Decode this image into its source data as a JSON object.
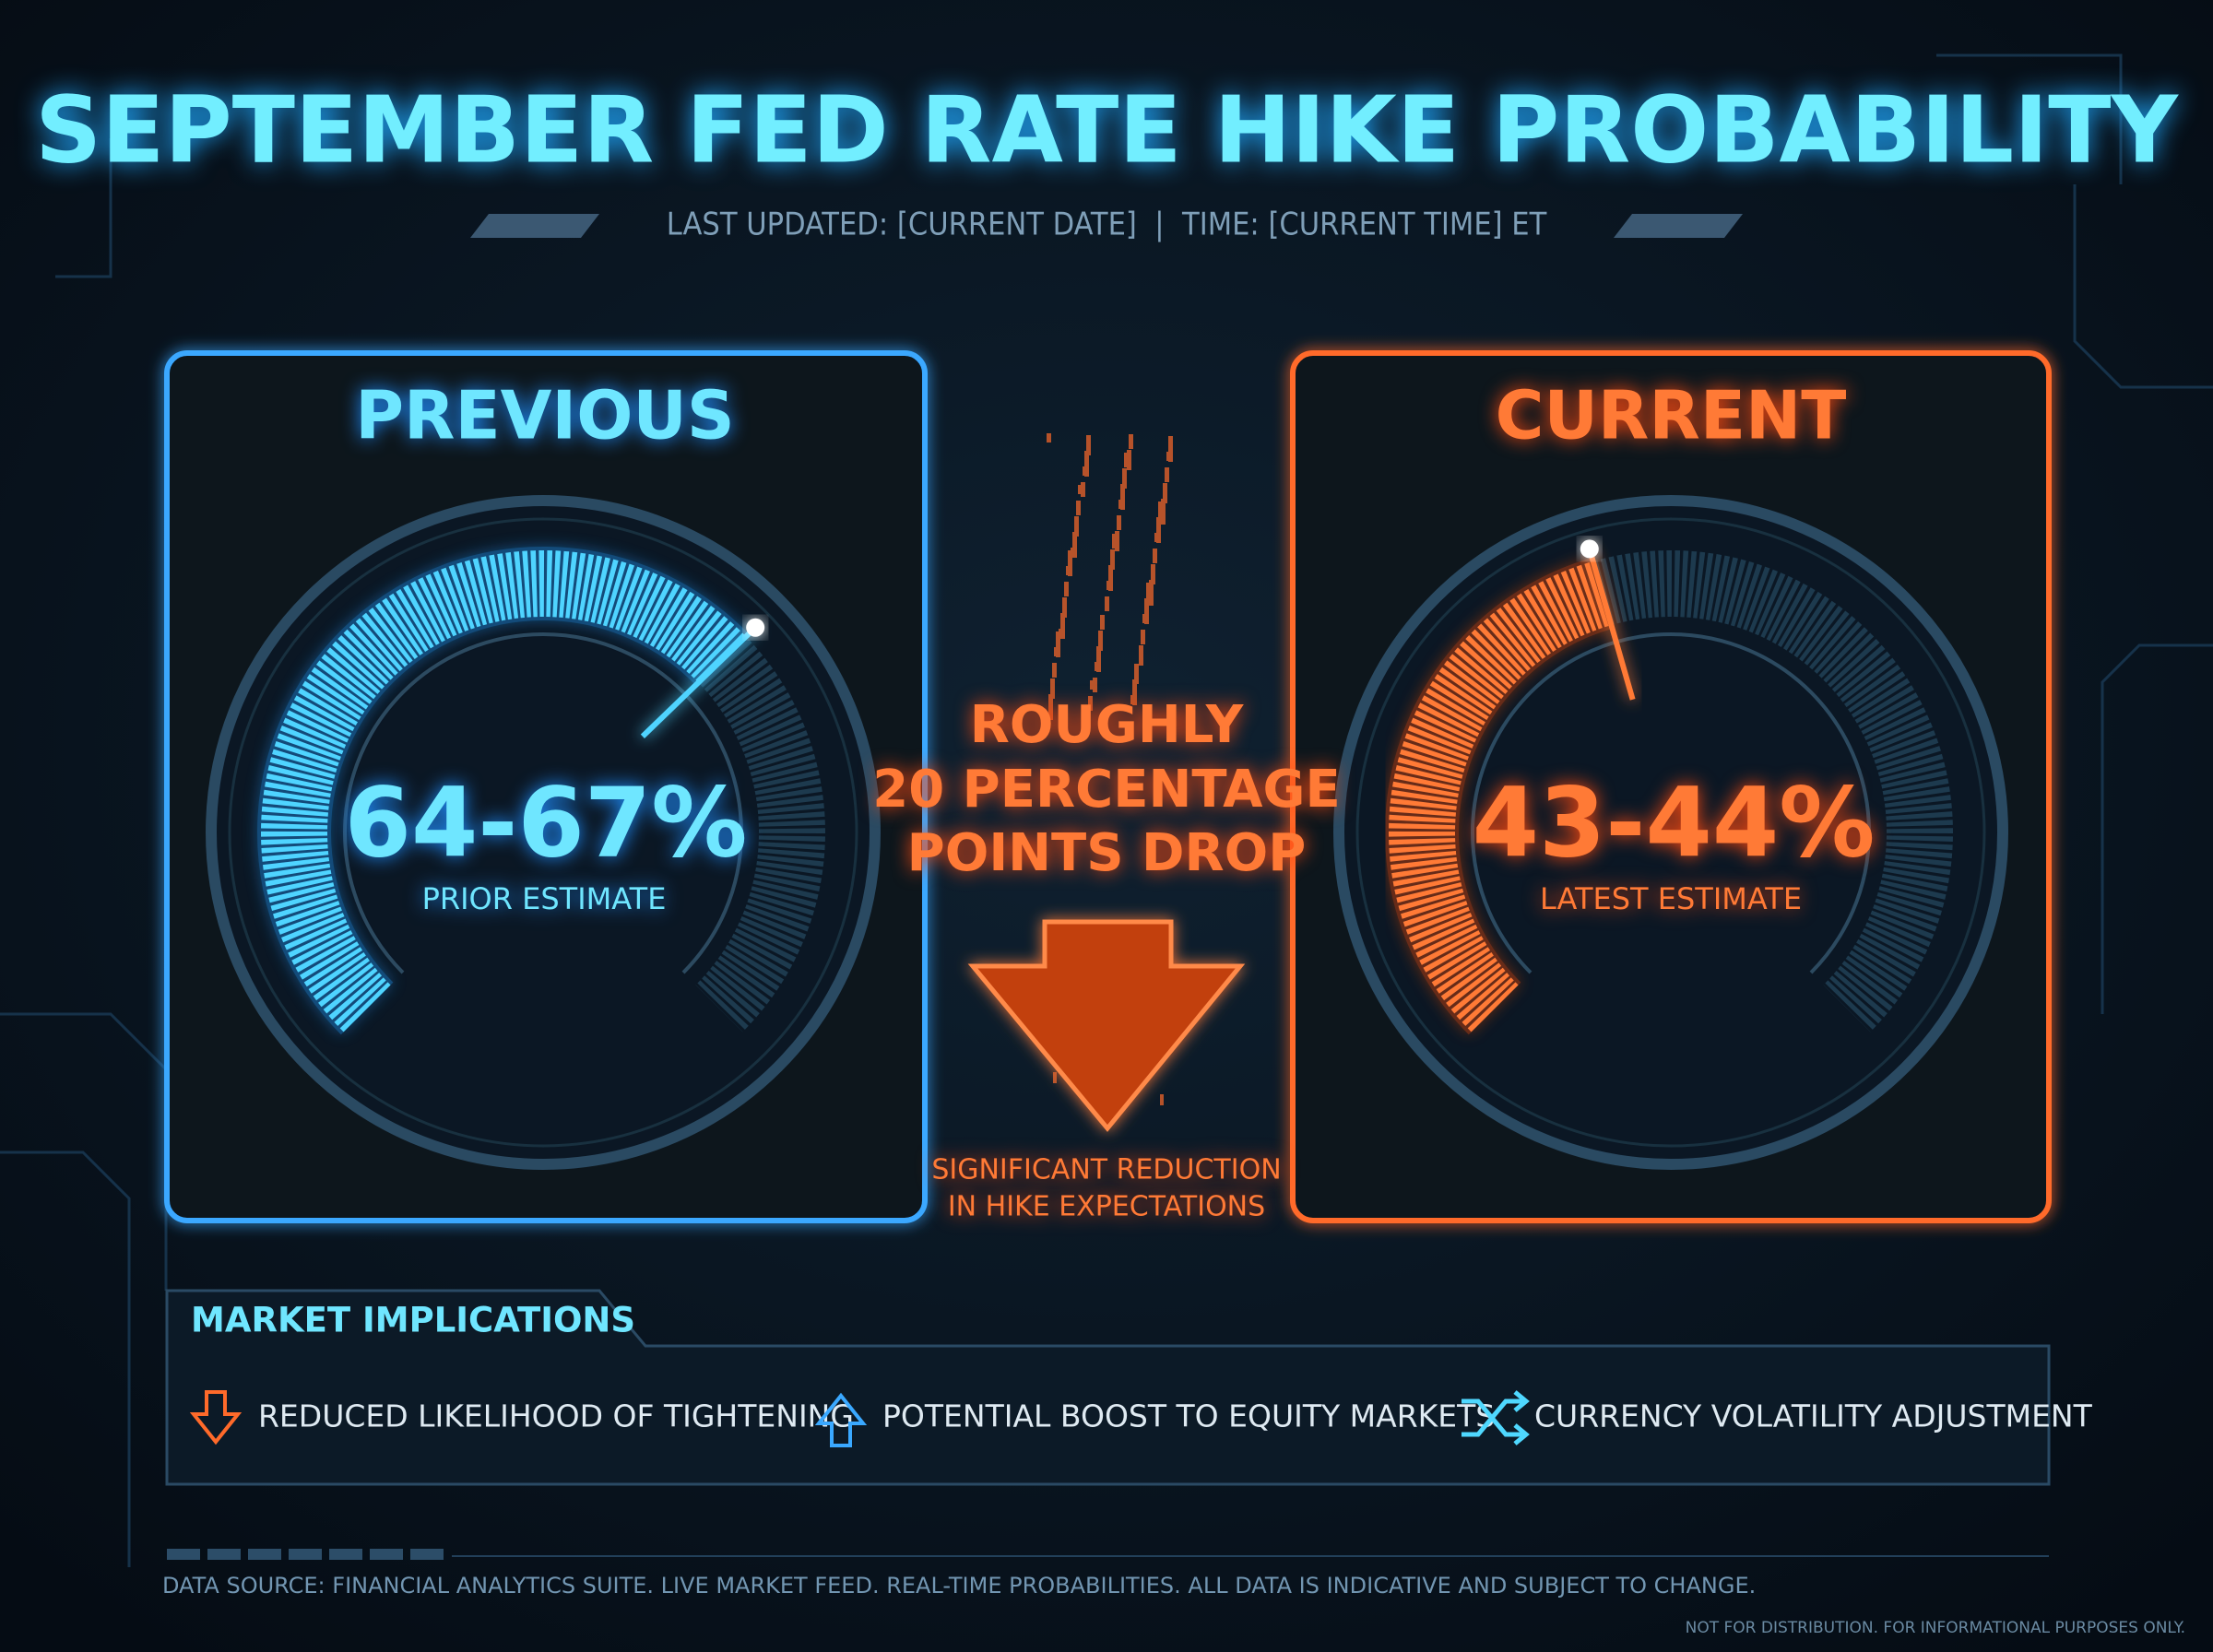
{
  "header": {
    "title": "SEPTEMBER FED RATE HIKE PROBABILITY",
    "subtitle": "LAST UPDATED: [CURRENT DATE]  |  TIME: [CURRENT TIME] ET"
  },
  "panels": [
    {
      "label": "PREVIOUS",
      "value": "64-67%",
      "caption": "PRIOR ESTIMATE"
    },
    {
      "label": "CURRENT",
      "value": "43-44%",
      "caption": "LATEST ESTIMATE"
    }
  ],
  "change": {
    "lines": [
      "ROUGHLY",
      "20 PERCENTAGE",
      "POINTS DROP"
    ],
    "note": [
      "SIGNIFICANT REDUCTION",
      "IN HIKE EXPECTATIONS"
    ]
  },
  "implications": {
    "title": "MARKET IMPLICATIONS",
    "items": [
      "REDUCED LIKELIHOOD OF TIGHTENING",
      "POTENTIAL BOOST TO EQUITY MARKETS",
      "CURRENCY VOLATILITY ADJUSTMENT"
    ]
  },
  "footer": {
    "source": "DATA SOURCE: FINANCIAL ANALYTICS SUITE. LIVE MARKET FEED. REAL-TIME PROBABILITIES. ALL DATA IS INDICATIVE AND SUBJECT TO CHANGE.",
    "disclaimer": "NOT FOR DISTRIBUTION. FOR INFORMATIONAL PURPOSES ONLY."
  }
}
